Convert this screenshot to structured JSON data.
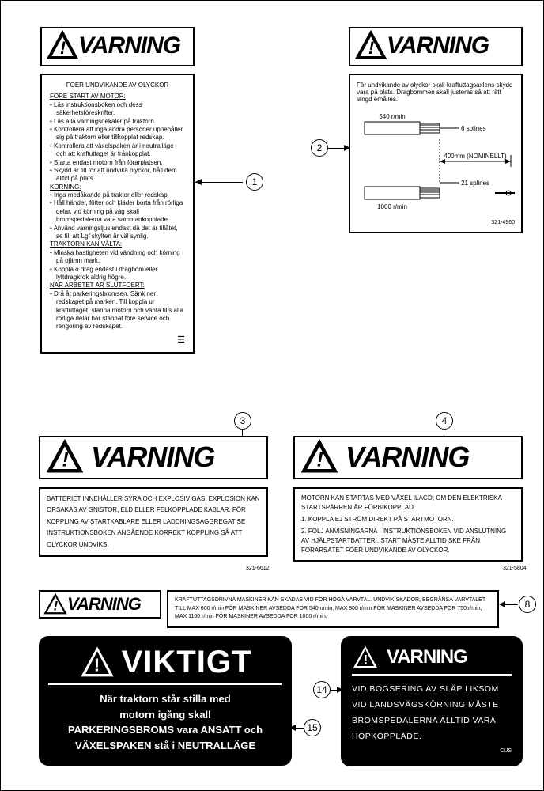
{
  "warning_word": "VARNING",
  "important_word": "VIKTIGT",
  "label1": {
    "intro": "FOER UNDVIKANDE AV OLYCKOR",
    "sec1_title": "FÖRE START AV MOTOR:",
    "sec1_items": [
      "Läs instruktionsboken och dess säkerhetsföreskrifter.",
      "Läs alla varningsdekaler på traktorn.",
      "Kontrollera att inga andra personer uppehåller sig på traktorn eller tillkopplat redskap.",
      "Kontrollera att växelspaken är i neutralläge och att kraftuttaget är frånkopplat.",
      "Starta endast motorn från förarplatsen.",
      "Skydd är till för att undvika olyckor, håll dem alltid på plats."
    ],
    "sec2_title": "KÖRNING:",
    "sec2_items": [
      "Inga medåkande på traktor eller redskap.",
      "Håll händer, fötter och kläder borta från rörliga delar, vid körning på väg skall bromspedalerna vara sammankopplade.",
      "Använd varningsljus endast då det är tillåtet, se till att Lgf skylten är väl synlig."
    ],
    "sec3_title": "TRAKTORN KAN VÄLTA:",
    "sec3_items": [
      "Minska hastigheten vid vändning och körning på ojämn mark.",
      "Koppla o drag endast i dragbom eller lyftdragkrok aldrig högre."
    ],
    "sec4_title": "NÄR ARBETET ÄR SLUTFOERT:",
    "sec4_items": [
      "Drå åt parkeringsbromsen. Sänk ner redskapet på marken. Till koppla ur kraftuttaget, stanna motorn och vänta tills alla rörliga delar har stannat före service och rengöring av redskapet."
    ]
  },
  "label2": {
    "intro": "För undvikande av olyckor skall kraftuttagsaxlens skydd vara på plats. Dragbommen skall justeras så att rätt längd erhålles.",
    "rpm1": "540 r/min",
    "splines1": "6 splines",
    "dist": "400mm (NOMINELLT)",
    "rpm2": "1000 r/min",
    "splines2": "21 splines",
    "code": "321-4960"
  },
  "label3": {
    "text": "BATTERIET INNEHÅLLER SYRA OCH EXPLOSIV GAS. EXPLOSION KAN ORSAKAS AV GNISTOR, ELD ELLER FELKOPPLADE KABLAR. FÖR KOPPLING AV STARTKABLARE ELLER LADDNINGSAGGREGAT SE INSTRUKTIONSBOKEN ANGÅENDE KORREKT KOPPLING SÅ ATT OLYCKOR UNDVIKS.",
    "code": "321-6612"
  },
  "label4": {
    "line1": "MOTORN KAN STARTAS MED VÄXEL ILAGD; OM DEN ELEKTRISKA STARTSPÄRREN ÄR FÖRBIKOPPLAD.",
    "line2": "1. KOPPLA EJ STRÖM DIREKT PÅ STARTMOTORN.",
    "line3": "2. FÖLJ ANVISNINGARNA I INSTRUKTIONSBOKEN VID ANSLUTNING AV HJÄLPSTARTBATTERI. START MÅSTE ALLTID SKE FRÅN FÖRARSÄTET FÖER UNDVIKANDE AV OLYCKOR.",
    "code": "321-5804"
  },
  "label8": {
    "text": "KRAFTUTTAGSDRIVNA MASKINER KAN SKADAS VID FÖR HÖGA VARVTAL. UNDVIK SKADOR, BEGRÄNSA VARVTALET TILL MAX 600 r/min FÖR MASKINER AVSEDDA FOR 540 r/min, MAX 800 r/min FÖR MASKINER AVSEDDA FOR 750 r/min, MAX 1100 r/min FÖR MASKINER AVSEDDA FOR 1000 r/min."
  },
  "label14": {
    "text": "VID BOGSERING AV SLÄP LIKSOM VID LANDSVÄGSKÖRNING MÅSTE BROMSPEDALERNA ALLTID VARA HOPKOPPLADE.",
    "code": "CUS"
  },
  "label15": {
    "l1": "När traktorn står stilla med",
    "l2": "motorn igång skall",
    "l3": "PARKERINGSBROMS vara ANSATT och",
    "l4": "VÄXELSPAKEN stå i NEUTRALLÄGE"
  },
  "callouts": {
    "c1": "1",
    "c2": "2",
    "c3": "3",
    "c4": "4",
    "c8": "8",
    "c14": "14",
    "c15": "15"
  },
  "colors": {
    "black": "#000000",
    "white": "#ffffff"
  }
}
